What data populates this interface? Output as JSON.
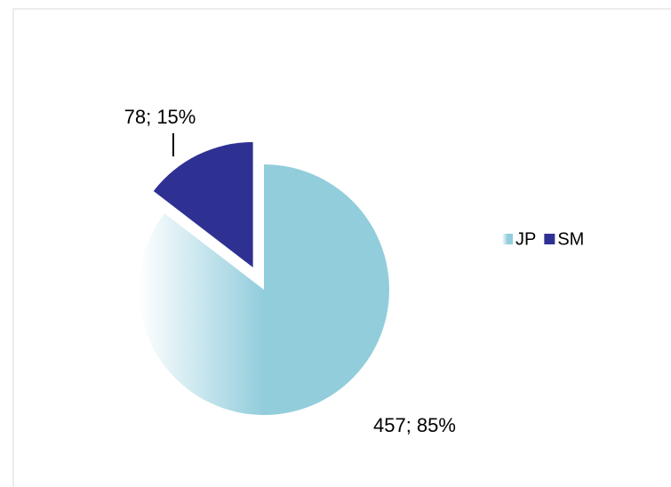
{
  "chart_data": {
    "type": "pie",
    "categories": [
      "JP",
      "SM"
    ],
    "values": [
      457,
      78
    ],
    "value_labels": [
      "457; 85%",
      "78; 15%"
    ],
    "colors": [
      "#92cddc",
      "#2e3192"
    ],
    "legend": "right"
  }
}
